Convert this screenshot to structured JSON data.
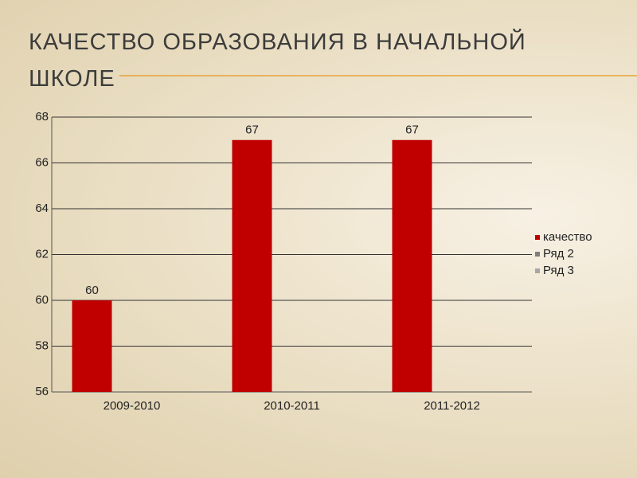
{
  "chart_data": {
    "type": "bar",
    "title": "КАЧЕСТВО ОБРАЗОВАНИЯ В  НАЧАЛЬНОЙ ШКОЛЕ",
    "categories": [
      "2009-2010",
      "2010-2011",
      "2011-2012"
    ],
    "series": [
      {
        "name": "качество",
        "color": "#c00000",
        "values": [
          60,
          67,
          67
        ]
      },
      {
        "name": "Ряд 2",
        "color": "#7f7f7f",
        "values": [
          null,
          null,
          null
        ]
      },
      {
        "name": "Ряд 3",
        "color": "#a6a6a6",
        "values": [
          null,
          null,
          null
        ]
      }
    ],
    "ylim": [
      56,
      68
    ],
    "yticks": [
      56,
      58,
      60,
      62,
      64,
      66,
      68
    ],
    "grid": true,
    "legend": "right"
  }
}
